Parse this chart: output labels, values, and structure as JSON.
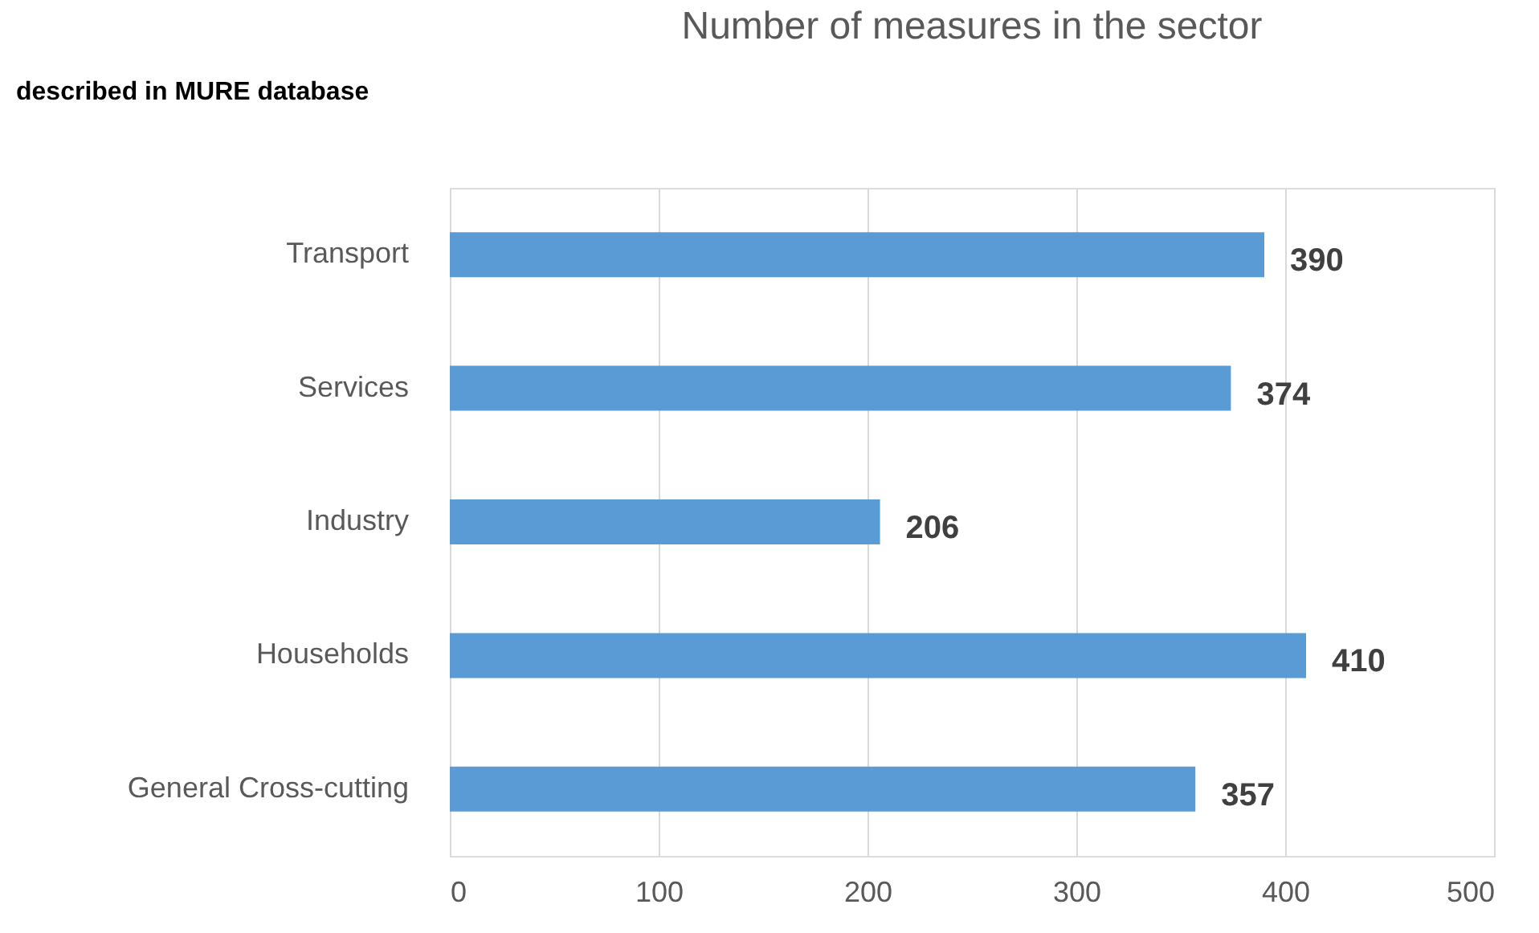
{
  "chart_data": {
    "type": "bar",
    "orientation": "horizontal",
    "title": "Number of measures in the sector",
    "annotations": [
      "described in MURE database"
    ],
    "categories": [
      "Transport",
      "Services",
      "Industry",
      "Households",
      "General Cross-cutting"
    ],
    "values": [
      390,
      374,
      206,
      410,
      357
    ],
    "color": "#5b9bd5",
    "data_labels": true,
    "xlim": [
      0,
      500
    ],
    "xticks": [
      0,
      100,
      200,
      300,
      400,
      500
    ],
    "grid": "x"
  }
}
